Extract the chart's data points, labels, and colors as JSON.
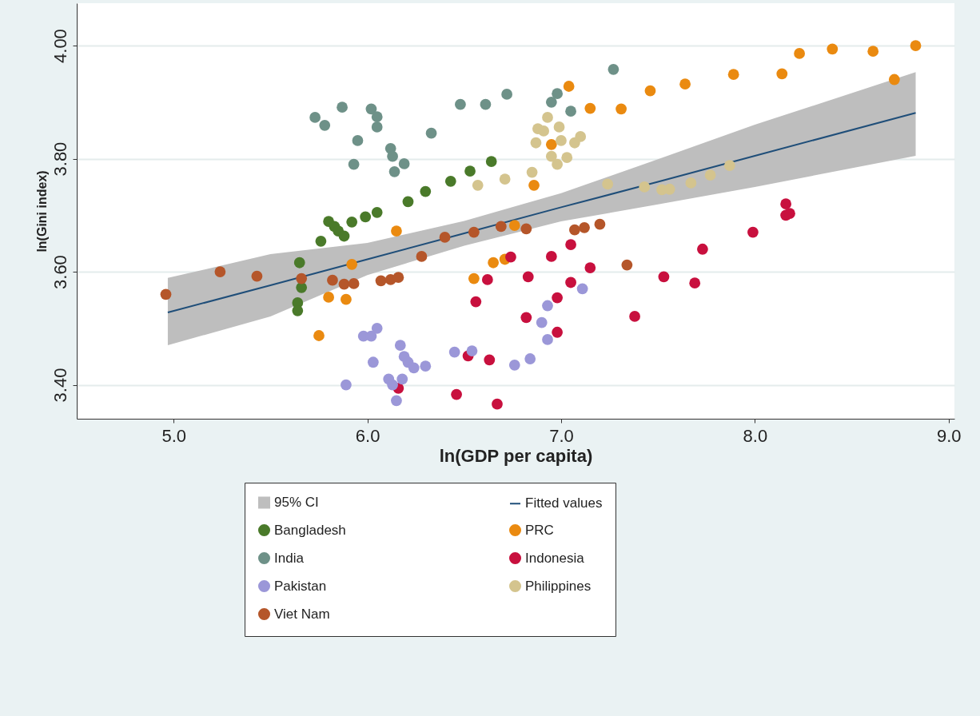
{
  "chart_data": {
    "type": "scatter",
    "xlabel": "ln(GDP per capita)",
    "ylabel": "ln(Gini index)",
    "xlim": [
      4.5,
      9.03
    ],
    "ylim": [
      3.34,
      4.075
    ],
    "xticks": [
      {
        "value": 5,
        "label": "5.0"
      },
      {
        "value": 6,
        "label": "6.0"
      },
      {
        "value": 7,
        "label": "7.0"
      },
      {
        "value": 8,
        "label": "8.0"
      },
      {
        "value": 9,
        "label": "9.0"
      }
    ],
    "yticks": [
      {
        "value": 3.4,
        "label": "3.40"
      },
      {
        "value": 3.6,
        "label": "3.60"
      },
      {
        "value": 3.8,
        "label": "3.80"
      },
      {
        "value": 4,
        "label": "4.00"
      }
    ],
    "annotations": [
      "95% CI"
    ],
    "grid": "y",
    "legend": "bottom",
    "marker": "circle",
    "series": [
      {
        "name": "Fitted values",
        "type": "line",
        "marker": "none",
        "color": "#1f4e79",
        "x": [
          4.97,
          5.5,
          6.0,
          6.5,
          7.0,
          7.5,
          8.0,
          8.83
        ],
        "values": [
          3.528,
          3.576,
          3.622,
          3.668,
          3.714,
          3.759,
          3.805,
          3.881
        ],
        "lower": [
          3.47,
          3.521,
          3.594,
          3.646,
          3.689,
          3.719,
          3.75,
          3.805
        ],
        "upper": [
          3.589,
          3.631,
          3.651,
          3.69,
          3.739,
          3.799,
          3.86,
          3.953
        ]
      },
      {
        "name": "Bangladesh",
        "color": "#4a7a2a",
        "x": [
          5.65,
          5.66,
          5.64,
          5.64,
          5.76,
          5.8,
          5.83,
          5.85,
          5.88,
          5.92,
          5.99,
          6.05,
          6.21,
          6.3,
          6.43,
          6.53,
          6.64
        ],
        "values": [
          3.616,
          3.572,
          3.545,
          3.531,
          3.654,
          3.689,
          3.68,
          3.672,
          3.663,
          3.688,
          3.697,
          3.705,
          3.724,
          3.742,
          3.76,
          3.778,
          3.795
        ]
      },
      {
        "name": "PRC",
        "color": "#ea8a10",
        "x": [
          5.75,
          5.8,
          5.89,
          5.92,
          6.15,
          6.55,
          6.65,
          6.71,
          6.76,
          6.86,
          6.95,
          7.04,
          7.15,
          7.31,
          7.46,
          7.64,
          7.89,
          8.14,
          8.23,
          8.4,
          8.61,
          8.72,
          8.83
        ],
        "values": [
          3.487,
          3.555,
          3.551,
          3.613,
          3.672,
          3.588,
          3.616,
          3.622,
          3.682,
          3.753,
          3.825,
          3.928,
          3.889,
          3.888,
          3.92,
          3.932,
          3.949,
          3.95,
          3.986,
          3.994,
          3.99,
          3.94,
          4.0
        ]
      },
      {
        "name": "India",
        "color": "#6e9188",
        "x": [
          5.73,
          5.78,
          5.87,
          6.02,
          6.05,
          6.05,
          5.95,
          5.93,
          6.12,
          6.13,
          6.19,
          6.14,
          6.33,
          6.48,
          6.61,
          6.72,
          6.95,
          6.98,
          7.05,
          7.27
        ],
        "values": [
          3.873,
          3.859,
          3.891,
          3.888,
          3.874,
          3.856,
          3.832,
          3.79,
          3.818,
          3.804,
          3.791,
          3.777,
          3.845,
          3.896,
          3.896,
          3.914,
          3.9,
          3.915,
          3.884,
          3.958
        ]
      },
      {
        "name": "Indonesia",
        "color": "#c8103e",
        "x": [
          6.16,
          6.46,
          6.52,
          6.56,
          6.62,
          6.63,
          6.67,
          6.74,
          6.82,
          6.83,
          6.95,
          6.98,
          6.98,
          7.05,
          7.05,
          7.15,
          7.38,
          7.53,
          7.69,
          7.73,
          7.99,
          8.16,
          8.16,
          8.18
        ],
        "values": [
          3.394,
          3.383,
          3.451,
          3.547,
          3.586,
          3.444,
          3.366,
          3.626,
          3.519,
          3.591,
          3.627,
          3.554,
          3.493,
          3.648,
          3.581,
          3.607,
          3.521,
          3.591,
          3.58,
          3.64,
          3.67,
          3.72,
          3.7,
          3.703
        ]
      },
      {
        "name": "Pakistan",
        "color": "#9b97d8",
        "x": [
          5.89,
          5.98,
          6.02,
          6.03,
          6.05,
          6.11,
          6.13,
          6.15,
          6.17,
          6.18,
          6.19,
          6.21,
          6.24,
          6.3,
          6.45,
          6.54,
          6.76,
          6.84,
          6.9,
          6.93,
          6.93,
          7.11
        ],
        "values": [
          3.4,
          3.486,
          3.486,
          3.44,
          3.5,
          3.41,
          3.4,
          3.372,
          3.47,
          3.41,
          3.45,
          3.44,
          3.43,
          3.433,
          3.458,
          3.46,
          3.435,
          3.446,
          3.51,
          3.48,
          3.54,
          3.57
        ]
      },
      {
        "name": "Philippines",
        "color": "#d4c48e",
        "x": [
          6.57,
          6.71,
          6.85,
          6.87,
          6.88,
          6.91,
          6.93,
          6.95,
          6.98,
          6.99,
          7.0,
          7.03,
          7.07,
          7.1,
          7.24,
          7.43,
          7.52,
          7.56,
          7.67,
          7.77,
          7.87
        ],
        "values": [
          3.753,
          3.764,
          3.776,
          3.828,
          3.853,
          3.849,
          3.873,
          3.804,
          3.79,
          3.856,
          3.832,
          3.802,
          3.828,
          3.839,
          3.755,
          3.75,
          3.745,
          3.746,
          3.757,
          3.771,
          3.788
        ]
      },
      {
        "name": "Viet Nam",
        "color": "#b5562a",
        "x": [
          4.96,
          5.24,
          5.43,
          5.66,
          5.82,
          5.88,
          5.93,
          6.07,
          6.12,
          6.16,
          6.28,
          6.4,
          6.55,
          6.69,
          6.82,
          7.07,
          7.12,
          7.2,
          7.34
        ],
        "values": [
          3.56,
          3.6,
          3.592,
          3.588,
          3.585,
          3.578,
          3.579,
          3.584,
          3.586,
          3.59,
          3.627,
          3.661,
          3.67,
          3.68,
          3.676,
          3.674,
          3.678,
          3.684,
          3.612
        ]
      }
    ]
  }
}
